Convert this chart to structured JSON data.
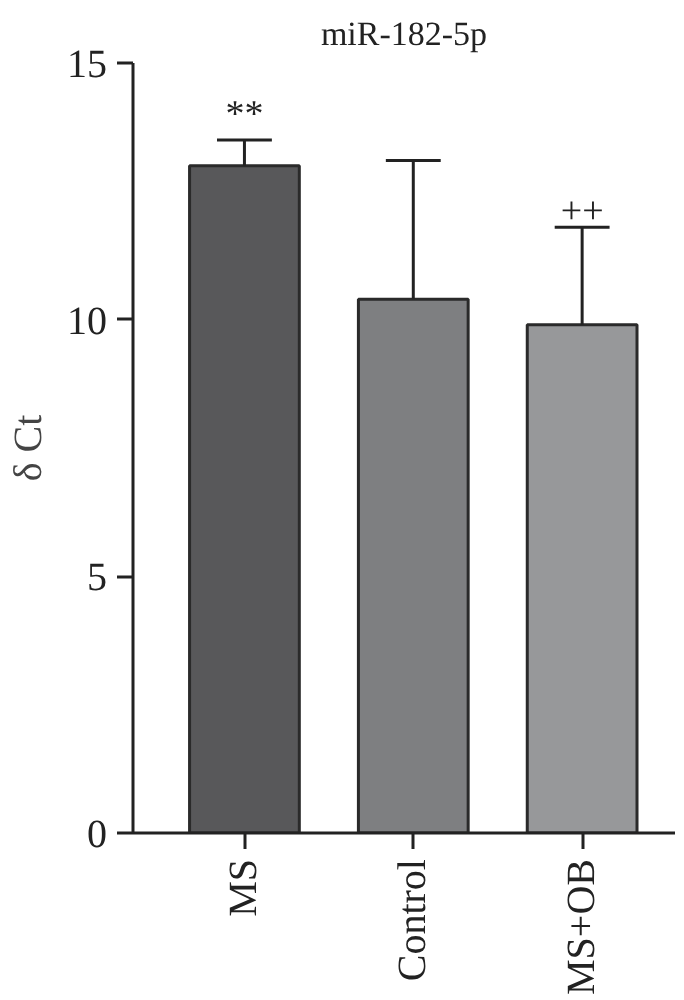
{
  "chart_data": {
    "type": "bar",
    "title": "miR-182-5p",
    "ylabel": "δ Ct",
    "categories": [
      "MS",
      "Control",
      "MS+OB"
    ],
    "values": [
      13.0,
      10.4,
      9.9
    ],
    "colors": [
      "#58585a",
      "#7e7f81",
      "#97989a"
    ],
    "errors": [
      [
        13.0,
        13.5
      ],
      [
        10.4,
        13.1
      ],
      [
        9.9,
        11.8
      ]
    ],
    "annotations": [
      {
        "text": "**",
        "x": "MS",
        "y": 13.5
      },
      {
        "text": "++",
        "x": "MS+OB",
        "y": 11.8
      }
    ],
    "ylim": [
      0,
      15
    ],
    "yticks": [
      0,
      5,
      10,
      15
    ],
    "grid": false
  }
}
